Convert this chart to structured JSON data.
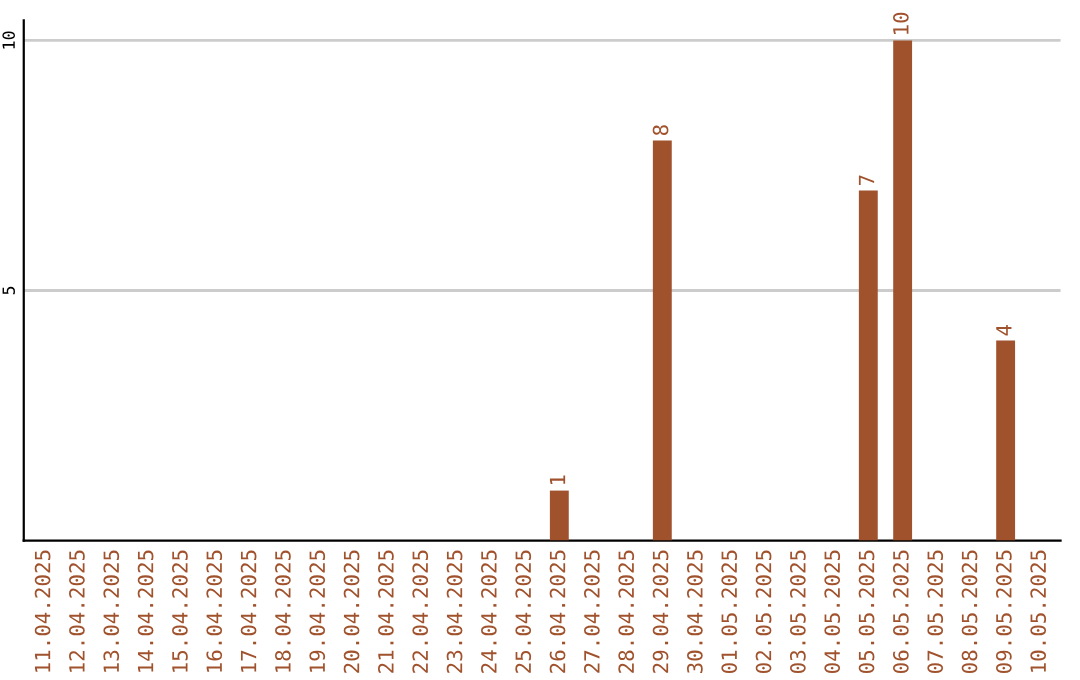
{
  "chart_data": {
    "type": "bar",
    "categories": [
      "11.04.2025",
      "12.04.2025",
      "13.04.2025",
      "14.04.2025",
      "15.04.2025",
      "16.04.2025",
      "17.04.2025",
      "18.04.2025",
      "19.04.2025",
      "20.04.2025",
      "21.04.2025",
      "22.04.2025",
      "23.04.2025",
      "24.04.2025",
      "25.04.2025",
      "26.04.2025",
      "27.04.2025",
      "28.04.2025",
      "29.04.2025",
      "30.04.2025",
      "01.05.2025",
      "02.05.2025",
      "03.05.2025",
      "04.05.2025",
      "05.05.2025",
      "06.05.2025",
      "07.05.2025",
      "08.05.2025",
      "09.05.2025",
      "10.05.2025"
    ],
    "values": [
      0,
      0,
      0,
      0,
      0,
      0,
      0,
      0,
      0,
      0,
      0,
      0,
      0,
      0,
      0,
      1,
      0,
      0,
      8,
      0,
      0,
      0,
      0,
      0,
      7,
      10,
      0,
      0,
      4,
      0
    ],
    "value_labels": [
      null,
      null,
      null,
      null,
      null,
      null,
      null,
      null,
      null,
      null,
      null,
      null,
      null,
      null,
      null,
      "1",
      null,
      null,
      "8",
      null,
      null,
      null,
      null,
      null,
      "7",
      "10",
      null,
      null,
      "4",
      null
    ],
    "color": "#a0522d",
    "ylim": [
      0,
      10.4
    ],
    "yticks": [
      5,
      10
    ],
    "grid": "y",
    "legend": false
  }
}
